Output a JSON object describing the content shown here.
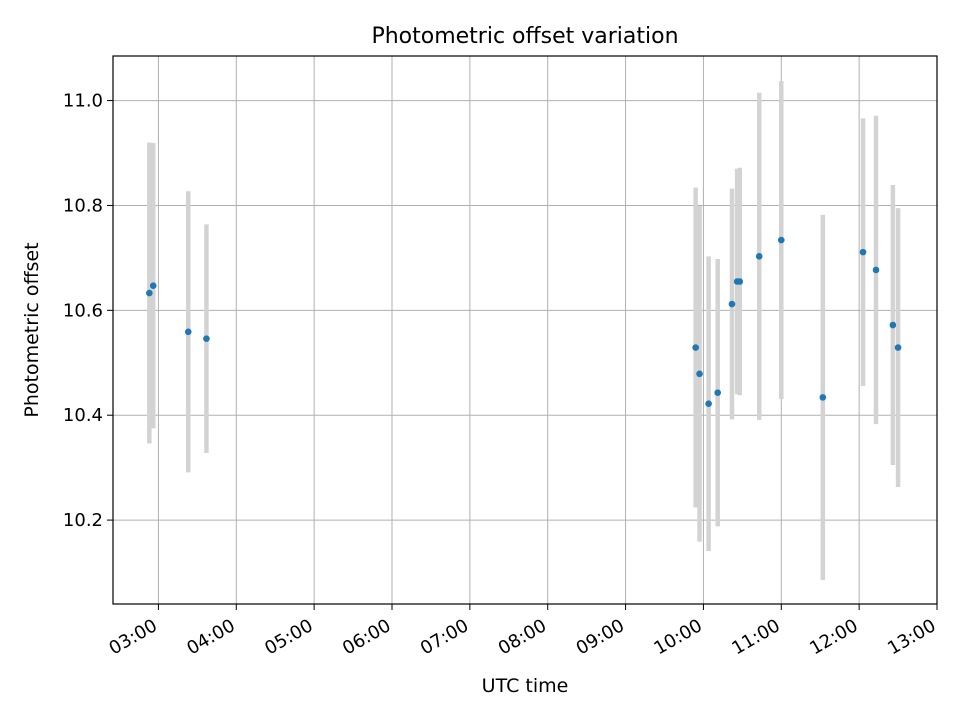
{
  "chart_data": {
    "type": "scatter",
    "title": "Photometric offset variation",
    "xlabel": "UTC time",
    "ylabel": "Photometric offset",
    "grid": true,
    "xlim": [
      "02:25",
      "13:00"
    ],
    "ylim": [
      10.04,
      11.085
    ],
    "x_ticks": [
      "03:00",
      "04:00",
      "05:00",
      "06:00",
      "07:00",
      "08:00",
      "09:00",
      "10:00",
      "11:00",
      "12:00",
      "13:00"
    ],
    "y_ticks": [
      "10.2",
      "10.4",
      "10.6",
      "10.8",
      "11.0"
    ],
    "marker_color": "#1f77b4",
    "errorbar_color": "#d3d3d3",
    "points": [
      {
        "x": "02:53",
        "y": 10.633,
        "err": 0.287
      },
      {
        "x": "02:56",
        "y": 10.647,
        "err": 0.272
      },
      {
        "x": "03:23",
        "y": 10.559,
        "err": 0.268
      },
      {
        "x": "03:37",
        "y": 10.546,
        "err": 0.218
      },
      {
        "x": "09:54",
        "y": 10.529,
        "err": 0.305
      },
      {
        "x": "09:57",
        "y": 10.479,
        "err": 0.32
      },
      {
        "x": "10:04",
        "y": 10.422,
        "err": 0.281
      },
      {
        "x": "10:11",
        "y": 10.443,
        "err": 0.255
      },
      {
        "x": "10:22",
        "y": 10.612,
        "err": 0.22
      },
      {
        "x": "10:26",
        "y": 10.655,
        "err": 0.215
      },
      {
        "x": "10:28",
        "y": 10.655,
        "err": 0.217
      },
      {
        "x": "10:43",
        "y": 10.703,
        "err": 0.312
      },
      {
        "x": "11:00",
        "y": 10.734,
        "err": 0.303
      },
      {
        "x": "11:32",
        "y": 10.434,
        "err": 0.348
      },
      {
        "x": "12:03",
        "y": 10.711,
        "err": 0.255
      },
      {
        "x": "12:13",
        "y": 10.677,
        "err": 0.294
      },
      {
        "x": "12:26",
        "y": 10.572,
        "err": 0.267
      },
      {
        "x": "12:30",
        "y": 10.529,
        "err": 0.266
      }
    ]
  }
}
